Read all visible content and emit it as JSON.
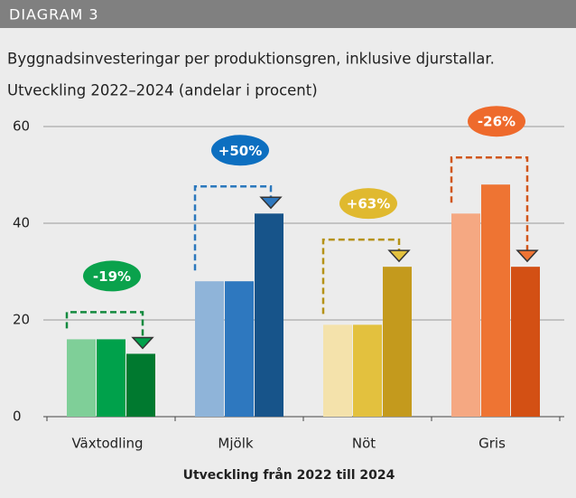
{
  "header": "DIAGRAM 3",
  "chart_data": {
    "type": "bar",
    "title": "Byggnadsinvesteringar per produktionsgren, inklusive djurstallar.",
    "subtitle": "Utveckling 2022–2024 (andelar i procent)",
    "xlabel": "Utveckling från 2022 till 2024",
    "categories": [
      "Växtodling",
      "Mjölk",
      "Nöt",
      "Gris"
    ],
    "series": [
      {
        "colors": [
          "#7fcf98",
          "#8fb4d9",
          "#f4e2ab",
          "#f5a882"
        ],
        "values": [
          16,
          28,
          19,
          42
        ]
      },
      {
        "colors": [
          "#00a14b",
          "#2e78bf",
          "#e3c13e",
          "#ee7433"
        ],
        "values": [
          16,
          28,
          19,
          48
        ]
      },
      {
        "colors": [
          "#00792f",
          "#17548a",
          "#c49a1d",
          "#d35014"
        ],
        "values": [
          13,
          42,
          31,
          31
        ]
      }
    ],
    "annotations": [
      {
        "text": "-19%",
        "color": "#0aa24c",
        "line_color": "#138a3f"
      },
      {
        "text": "+50%",
        "color": "#0d6fc0",
        "line_color": "#2b78bd"
      },
      {
        "text": "+63%",
        "color": "#e0b92f",
        "line_color": "#b59217"
      },
      {
        "text": "-26%",
        "color": "#ee6a2c",
        "line_color": "#d0561b"
      }
    ],
    "ylim": [
      0,
      60
    ],
    "yticks": [
      0,
      20,
      40,
      60
    ],
    "grid": true
  }
}
